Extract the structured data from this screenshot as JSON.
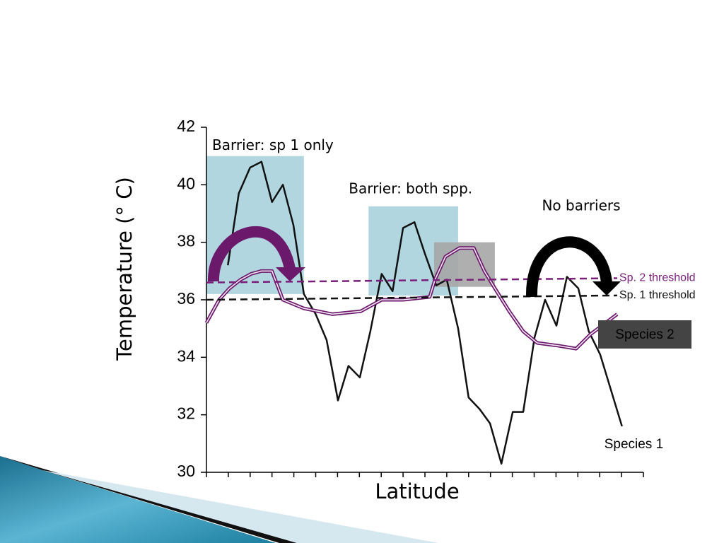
{
  "chart_data": {
    "type": "line",
    "x_label": "Latitude",
    "y_label": "Temperature (°  C)",
    "xlim": [
      0,
      100
    ],
    "xticks": [
      0,
      5,
      10,
      15,
      20,
      25,
      30,
      35,
      40,
      45,
      50,
      55,
      60,
      65,
      70,
      75,
      80,
      85,
      90,
      95,
      100
    ],
    "ylim": [
      30,
      42
    ],
    "yticks": [
      30,
      32,
      34,
      36,
      38,
      40,
      42
    ],
    "regions": [
      {
        "label": "Barrier: sp 1 only",
        "x": [
          0,
          22.3
        ],
        "y": [
          36.2,
          41.0
        ],
        "color": "#a8d2dd"
      },
      {
        "label": "Barrier: both spp.",
        "x": [
          37.1,
          57.6
        ],
        "y": [
          36.15,
          39.25
        ],
        "color": "#a8d2dd"
      },
      {
        "x": [
          52.1,
          66
        ],
        "y": [
          36.45,
          38.0
        ],
        "color": "#a6a6a6"
      }
    ],
    "annotations": [
      "No barriers"
    ],
    "series": [
      {
        "name": "Species 1",
        "color": "#111111",
        "style": "solid",
        "x": [
          4.9,
          7.4,
          10,
          12.6,
          15,
          17.5,
          19.9,
          22.3,
          25,
          27.5,
          30.1,
          32.5,
          35.1,
          37.5,
          40.1,
          42.6,
          45,
          47.6,
          50,
          52.6,
          55,
          57.6,
          60,
          62.5,
          64.9,
          67.5,
          70.1,
          72.5,
          75.1,
          77.5,
          80.1,
          82.5,
          85.1,
          87.5,
          90.1,
          95.1
        ],
        "values": [
          37.2,
          39.7,
          40.6,
          40.8,
          39.4,
          40.0,
          38.6,
          36.2,
          35.5,
          34.6,
          32.5,
          33.7,
          33.3,
          34.9,
          36.9,
          36.3,
          38.5,
          38.7,
          37.6,
          36.5,
          36.7,
          35.0,
          32.6,
          32.2,
          31.7,
          30.3,
          32.1,
          32.1,
          34.7,
          36.0,
          35.1,
          36.8,
          36.4,
          34.9,
          34.1,
          31.6
        ]
      },
      {
        "name": "Species 2",
        "color": "#6b1a6b",
        "style": "double",
        "x": [
          0,
          2.9,
          5.3,
          7.8,
          10.2,
          12.6,
          15,
          17.5,
          22.3,
          28.8,
          35.3,
          40.1,
          45,
          51.1,
          52.3,
          54.7,
          57.9,
          61.2,
          63.6,
          66,
          69.3,
          72.5,
          75.7,
          80.6,
          84.6,
          87.9,
          94
        ],
        "values": [
          35.2,
          36.0,
          36.4,
          36.7,
          36.9,
          37.0,
          37.0,
          36.0,
          35.7,
          35.5,
          35.6,
          36.0,
          36.0,
          36.1,
          36.7,
          37.5,
          37.8,
          37.8,
          37.0,
          36.4,
          35.6,
          34.9,
          34.5,
          34.4,
          34.3,
          34.8,
          35.5
        ]
      },
      {
        "name": "Sp. 2 threshold",
        "color": "#7a1f7a",
        "style": "dashed",
        "x": [
          0,
          94
        ],
        "values": [
          36.6,
          36.75
        ]
      },
      {
        "name": "Sp. 1 threshold",
        "color": "#111111",
        "style": "dashed",
        "x": [
          0,
          94
        ],
        "values": [
          36.0,
          36.15
        ]
      }
    ]
  }
}
